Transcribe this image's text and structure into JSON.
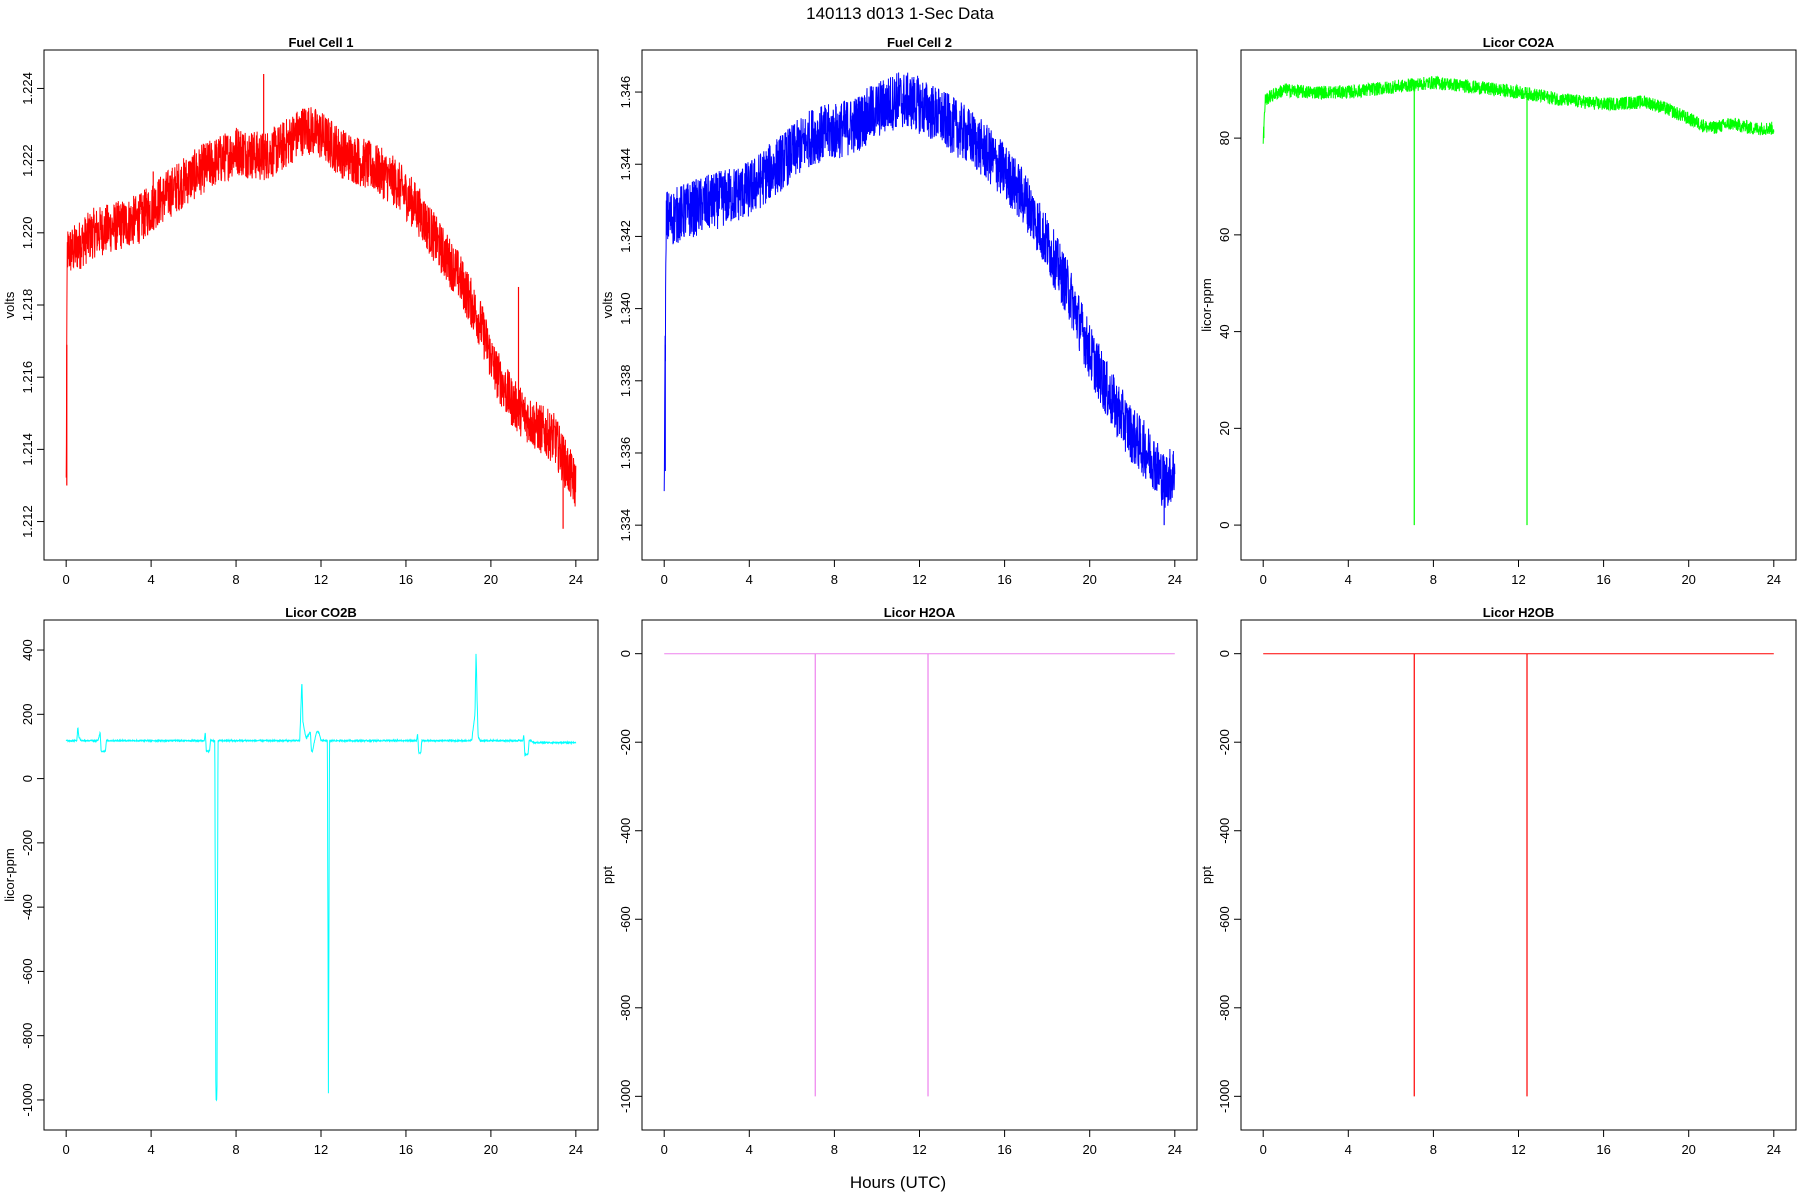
{
  "figure": {
    "title": "140113   d013   1-Sec Data",
    "xlabel": "Hours (UTC)"
  },
  "chart_data": [
    {
      "type": "line",
      "title": "Fuel Cell 1",
      "ylabel": "volts",
      "color": "#ff0000",
      "xlim": [
        0,
        24
      ],
      "ylim": [
        1.2115,
        1.2245
      ],
      "xticks": [
        0,
        4,
        8,
        12,
        16,
        20,
        24
      ],
      "yticks": [
        1.212,
        1.214,
        1.216,
        1.218,
        1.22,
        1.222,
        1.224
      ],
      "ytick_decimals": 3,
      "noise": 0.0007,
      "x": [
        0,
        0.05,
        0.3,
        1.3,
        2.5,
        3.5,
        4.2,
        5.3,
        6.5,
        7.5,
        8.0,
        8.6,
        9.2,
        10.0,
        10.8,
        11.3,
        12.0,
        13.0,
        14.5,
        15.5,
        16.5,
        17.5,
        18.5,
        19.5,
        20.2,
        21.0,
        22.0,
        23.0,
        23.5,
        24.0
      ],
      "y": [
        1.213,
        1.2195,
        1.2195,
        1.22,
        1.2202,
        1.2204,
        1.2208,
        1.2213,
        1.2218,
        1.2221,
        1.2223,
        1.2222,
        1.2221,
        1.2223,
        1.2227,
        1.2229,
        1.2227,
        1.2222,
        1.2218,
        1.2214,
        1.2207,
        1.2197,
        1.2188,
        1.2175,
        1.2162,
        1.2153,
        1.2147,
        1.2143,
        1.2136,
        1.213
      ],
      "spikes": [
        {
          "x": 0.03,
          "y": 1.213
        },
        {
          "x": 4.1,
          "y": 1.2217
        },
        {
          "x": 9.3,
          "y": 1.2244
        },
        {
          "x": 21.3,
          "y": 1.2185
        },
        {
          "x": 23.4,
          "y": 1.2118
        }
      ]
    },
    {
      "type": "line",
      "title": "Fuel Cell 2",
      "ylabel": "volts",
      "color": "#0000ff",
      "xlim": [
        0,
        24
      ],
      "ylim": [
        1.3336,
        1.3466
      ],
      "xticks": [
        0,
        4,
        8,
        12,
        16,
        20,
        24
      ],
      "yticks": [
        1.334,
        1.336,
        1.338,
        1.34,
        1.342,
        1.344,
        1.346
      ],
      "ytick_decimals": 3,
      "noise": 0.0008,
      "x": [
        0,
        0.1,
        0.3,
        1.0,
        2.0,
        3.0,
        4.0,
        5.0,
        6.0,
        7.0,
        8.0,
        9.0,
        10.0,
        11.0,
        11.8,
        13.0,
        14.5,
        16.0,
        17.0,
        18.0,
        19.0,
        20.0,
        21.0,
        22.0,
        23.0,
        23.5,
        24.0
      ],
      "y": [
        1.3355,
        1.3425,
        1.3425,
        1.3427,
        1.3429,
        1.3431,
        1.3433,
        1.3438,
        1.3443,
        1.3448,
        1.3449,
        1.3451,
        1.3455,
        1.3458,
        1.3457,
        1.3453,
        1.3447,
        1.3438,
        1.343,
        1.3418,
        1.3405,
        1.3388,
        1.3375,
        1.3365,
        1.3358,
        1.3352,
        1.3355
      ],
      "spikes": [
        {
          "x": 0.05,
          "y": 1.3355
        },
        {
          "x": 23.5,
          "y": 1.334
        }
      ]
    },
    {
      "type": "line",
      "title": "Licor CO2A",
      "ylabel": "licor-ppm",
      "color": "#00ff00",
      "xlim": [
        0,
        24
      ],
      "ylim": [
        -3,
        94
      ],
      "xticks": [
        0,
        4,
        8,
        12,
        16,
        20,
        24
      ],
      "yticks": [
        0,
        20,
        40,
        60,
        80
      ],
      "ytick_decimals": 0,
      "noise": 1.4,
      "x": [
        0,
        0.1,
        0.5,
        1.0,
        2.0,
        4.0,
        6.0,
        8.0,
        10.0,
        12.0,
        14.0,
        16.0,
        18.0,
        19.0,
        20.0,
        21.0,
        22.0,
        23.0,
        24.0
      ],
      "y": [
        80,
        88,
        89,
        90,
        89.5,
        89.5,
        90.5,
        91.5,
        90.5,
        89.5,
        88,
        87,
        87.5,
        86,
        84,
        82,
        83,
        82,
        82
      ],
      "spikes": [
        {
          "x": 0.03,
          "y": 80
        },
        {
          "x": 7.1,
          "y": 0
        },
        {
          "x": 12.4,
          "y": 0
        }
      ]
    },
    {
      "type": "line",
      "title": "Licor CO2B",
      "ylabel": "licor-ppm",
      "color": "#00ffff",
      "xlim": [
        0,
        24
      ],
      "ylim": [
        -1030,
        430
      ],
      "xticks": [
        0,
        4,
        8,
        12,
        16,
        20,
        24
      ],
      "yticks": [
        -1000,
        -800,
        -600,
        -400,
        -200,
        0,
        200,
        400
      ],
      "ytick_decimals": 0,
      "noise": 2,
      "x": [
        0,
        0.5,
        0.55,
        0.6,
        0.7,
        1.5,
        1.6,
        1.65,
        1.7,
        1.85,
        1.9,
        1.95,
        2.5,
        6.5,
        6.55,
        6.6,
        6.75,
        6.8,
        6.85,
        7.0,
        7.05,
        7.1,
        7.15,
        7.2,
        11.0,
        11.1,
        11.15,
        11.3,
        11.5,
        11.55,
        11.6,
        11.75,
        11.8,
        11.9,
        12.0,
        12.3,
        12.35,
        12.4,
        12.45,
        12.5,
        16.5,
        16.55,
        16.6,
        16.7,
        16.75,
        16.8,
        16.95,
        17.0,
        19.0,
        19.1,
        19.25,
        19.3,
        19.35,
        19.4,
        19.5,
        21.5,
        21.55,
        21.6,
        21.75,
        21.8,
        21.9,
        22.0,
        24.0
      ],
      "y": [
        118,
        118,
        160,
        130,
        118,
        118,
        145,
        85,
        85,
        85,
        120,
        118,
        118,
        118,
        145,
        85,
        85,
        120,
        118,
        118,
        -1000,
        -1000,
        118,
        118,
        118,
        305,
        175,
        125,
        145,
        85,
        85,
        135,
        145,
        145,
        118,
        118,
        -1000,
        118,
        118,
        118,
        118,
        140,
        80,
        80,
        120,
        118,
        118,
        118,
        118,
        120,
        200,
        395,
        250,
        130,
        118,
        118,
        135,
        75,
        75,
        118,
        118,
        112,
        112
      ],
      "spikes": []
    },
    {
      "type": "line",
      "title": "Licor H2OA",
      "ylabel": "ppt",
      "color": "#ee82ee",
      "xlim": [
        0,
        24
      ],
      "ylim": [
        -1030,
        30
      ],
      "xticks": [
        0,
        4,
        8,
        12,
        16,
        20,
        24
      ],
      "yticks": [
        -1000,
        -800,
        -600,
        -400,
        -200,
        0
      ],
      "ytick_decimals": 0,
      "noise": 0,
      "x": [
        0,
        24
      ],
      "y": [
        0,
        0
      ],
      "spikes": [
        {
          "x": 7.1,
          "y": -1000
        },
        {
          "x": 12.4,
          "y": -1000
        }
      ]
    },
    {
      "type": "line",
      "title": "Licor H2OB",
      "ylabel": "ppt",
      "color": "#ff0000",
      "xlim": [
        0,
        24
      ],
      "ylim": [
        -1030,
        30
      ],
      "xticks": [
        0,
        4,
        8,
        12,
        16,
        20,
        24
      ],
      "yticks": [
        -1000,
        -800,
        -600,
        -400,
        -200,
        0
      ],
      "ytick_decimals": 0,
      "noise": 0,
      "x": [
        0,
        24
      ],
      "y": [
        0,
        0
      ],
      "spikes": [
        {
          "x": 7.1,
          "y": -1000
        },
        {
          "x": 12.4,
          "y": -1000
        }
      ]
    }
  ]
}
